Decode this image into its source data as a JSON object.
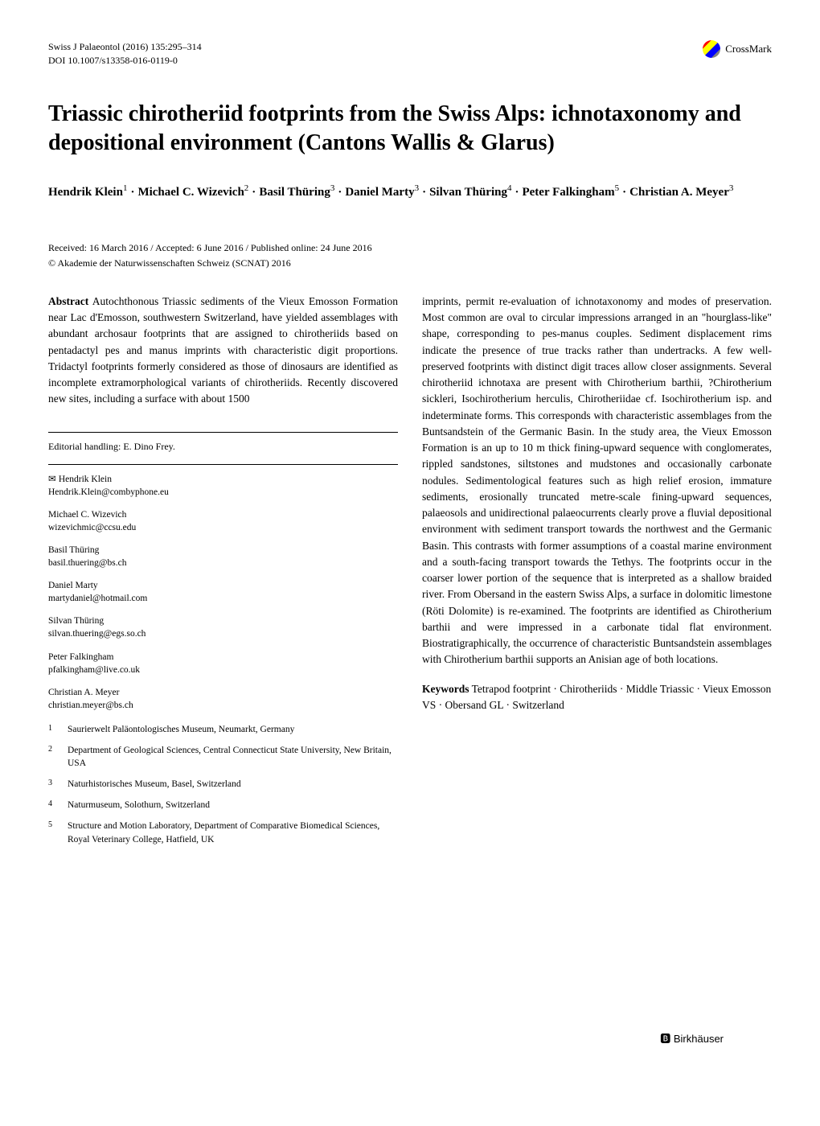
{
  "header": {
    "journal": "Swiss J Palaeontol (2016) 135:295–314",
    "doi": "DOI 10.1007/s13358-016-0119-0",
    "crossmark": "CrossMark"
  },
  "title": "Triassic chirotheriid footprints from the Swiss Alps: ichnotaxonomy and depositional environment (Cantons Wallis & Glarus)",
  "authors_html": "Hendrik Klein<sup>1</sup> · Michael C. Wizevich<sup>2</sup> · Basil Thüring<sup>3</sup> · Daniel Marty<sup>3</sup> · Silvan Thüring<sup>4</sup> · Peter Falkingham<sup>5</sup> · Christian A. Meyer<sup>3</sup>",
  "authors": [
    {
      "name": "Hendrik Klein",
      "sup": "1"
    },
    {
      "name": "Michael C. Wizevich",
      "sup": "2"
    },
    {
      "name": "Basil Thüring",
      "sup": "3"
    },
    {
      "name": "Daniel Marty",
      "sup": "3"
    },
    {
      "name": "Silvan Thüring",
      "sup": "4"
    },
    {
      "name": "Peter Falkingham",
      "sup": "5"
    },
    {
      "name": "Christian A. Meyer",
      "sup": "3"
    }
  ],
  "received": "Received: 16 March 2016 / Accepted: 6 June 2016 / Published online: 24 June 2016",
  "copyright": "© Akademie der Naturwissenschaften Schweiz (SCNAT) 2016",
  "abstract_label": "Abstract",
  "abstract_left": " Autochthonous Triassic sediments of the Vieux Emosson Formation near Lac d'Emosson, southwestern Switzerland, have yielded assemblages with abundant archosaur footprints that are assigned to chirotheriids based on pentadactyl pes and manus imprints with characteristic digit proportions. Tridactyl footprints formerly considered as those of dinosaurs are identified as incomplete extramorphological variants of chirotheriids. Recently discovered new sites, including a surface with about 1500",
  "abstract_right": "imprints, permit re-evaluation of ichnotaxonomy and modes of preservation. Most common are oval to circular impressions arranged in an \"hourglass-like\" shape, corresponding to pes-manus couples. Sediment displacement rims indicate the presence of true tracks rather than undertracks. A few well-preserved footprints with distinct digit traces allow closer assignments. Several chirotheriid ichnotaxa are present with Chirotherium barthii, ?Chirotherium sickleri, Isochirotherium herculis, Chirotheriidae cf. Isochirotherium isp. and indeterminate forms. This corresponds with characteristic assemblages from the Buntsandstein of the Germanic Basin. In the study area, the Vieux Emosson Formation is an up to 10 m thick fining-upward sequence with conglomerates, rippled sandstones, siltstones and mudstones and occasionally carbonate nodules. Sedimentological features such as high relief erosion, immature sediments, erosionally truncated metre-scale fining-upward sequences, palaeosols and unidirectional palaeocurrents clearly prove a fluvial depositional environment with sediment transport towards the northwest and the Germanic Basin. This contrasts with former assumptions of a coastal marine environment and a south-facing transport towards the Tethys. The footprints occur in the coarser lower portion of the sequence that is interpreted as a shallow braided river. From Obersand in the eastern Swiss Alps, a surface in dolomitic limestone (Röti Dolomite) is re-examined. The footprints are identified as Chirotherium barthii and were impressed in a carbonate tidal flat environment. Biostratigraphically, the occurrence of characteristic Buntsandstein assemblages with Chirotherium barthii supports an Anisian age of both locations.",
  "keywords_label": "Keywords",
  "keywords": " Tetrapod footprint · Chirotheriids · Middle Triassic · Vieux Emosson VS · Obersand GL · Switzerland",
  "editorial": "Editorial handling: E. Dino Frey.",
  "corresponding": [
    {
      "name": "Hendrik Klein",
      "email": "Hendrik.Klein@combyphone.eu",
      "primary": true
    },
    {
      "name": "Michael C. Wizevich",
      "email": "wizevichmic@ccsu.edu"
    },
    {
      "name": "Basil Thüring",
      "email": "basil.thuering@bs.ch"
    },
    {
      "name": "Daniel Marty",
      "email": "martydaniel@hotmail.com"
    },
    {
      "name": "Silvan Thüring",
      "email": "silvan.thuering@egs.so.ch"
    },
    {
      "name": "Peter Falkingham",
      "email": "pfalkingham@live.co.uk"
    },
    {
      "name": "Christian A. Meyer",
      "email": "christian.meyer@bs.ch"
    }
  ],
  "affiliations": [
    {
      "num": "1",
      "text": "Saurierwelt Paläontologisches Museum, Neumarkt, Germany"
    },
    {
      "num": "2",
      "text": "Department of Geological Sciences, Central Connecticut State University, New Britain, USA"
    },
    {
      "num": "3",
      "text": "Naturhistorisches Museum, Basel, Switzerland"
    },
    {
      "num": "4",
      "text": "Naturmuseum, Solothurn, Switzerland"
    },
    {
      "num": "5",
      "text": "Structure and Motion Laboratory, Department of Comparative Biomedical Sciences, Royal Veterinary College, Hatfield, UK"
    }
  ],
  "publisher": "Birkhäuser",
  "colors": {
    "text": "#000000",
    "background": "#ffffff",
    "rule": "#000000"
  },
  "typography": {
    "title_fontsize": 28,
    "body_fontsize": 13.5,
    "small_fontsize": 12,
    "author_fontsize": 15,
    "affil_fontsize": 11.5
  }
}
